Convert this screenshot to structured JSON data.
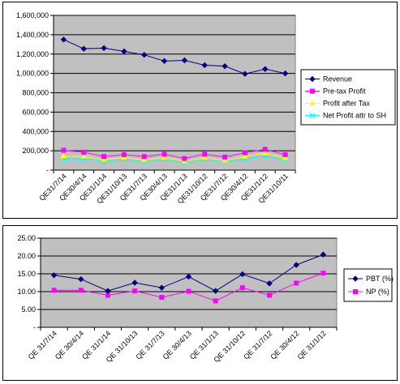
{
  "chart_data": [
    {
      "type": "line",
      "categories": [
        "QE31/7/14",
        "QE30/4/14",
        "QE31/1/14",
        "QE31/10/13",
        "QE31/7/13",
        "QE30/4/13",
        "QE31/1/13",
        "QE31/10/12",
        "QE31/7/12",
        "QE30/4/12",
        "QE31/1/12",
        "QE31/10/11"
      ],
      "ylim": [
        0,
        1600000
      ],
      "yticks": [
        "-",
        "200,000",
        "400,000",
        "600,000",
        "800,000",
        "1,000,000",
        "1,200,000",
        "1,400,000",
        "1,600,000"
      ],
      "grid": true,
      "legend": "right",
      "series": [
        {
          "name": "Revenue",
          "color": "#000080",
          "marker": "diamond",
          "values": [
            1350000,
            1255000,
            1262000,
            1228000,
            1192000,
            1128000,
            1135000,
            1085000,
            1075000,
            995000,
            1045000,
            1000000
          ]
        },
        {
          "name": "Pre-tax Profit",
          "color": "#ff00ff",
          "marker": "square",
          "values": [
            205000,
            185000,
            140000,
            160000,
            140000,
            165000,
            120000,
            165000,
            135000,
            180000,
            215000,
            160000
          ]
        },
        {
          "name": "Profit after Tax",
          "color": "#ffff00",
          "marker": "triangle",
          "values": [
            145000,
            140000,
            110000,
            130000,
            105000,
            130000,
            90000,
            130000,
            100000,
            140000,
            175000,
            125000
          ]
        },
        {
          "name": "Net Profit attr to SH",
          "color": "#00ffff",
          "marker": "x",
          "values": [
            115000,
            115000,
            90000,
            110000,
            85000,
            110000,
            75000,
            110000,
            85000,
            115000,
            145000,
            105000
          ]
        }
      ]
    },
    {
      "type": "line",
      "categories": [
        "QE 31/7/14",
        "QE 30/4/14",
        "QE 31/1/14",
        "QE 31/10/13",
        "QE 31/7/13",
        "QE 30/4/13",
        "QE 31/1/13",
        "QE 31/10/12",
        "QE 31/7/12",
        "QE 30/4/12",
        "QE 31/1/12"
      ],
      "ylim": [
        0,
        25
      ],
      "yticks": [
        "-",
        "5.00",
        "10.00",
        "15.00",
        "20.00",
        "25.00"
      ],
      "grid": true,
      "legend": "right",
      "series": [
        {
          "name": "PBT (%)",
          "color": "#000080",
          "marker": "diamond",
          "values": [
            14.6,
            13.5,
            10.2,
            12.5,
            11.1,
            14.2,
            10.2,
            14.9,
            12.3,
            17.5,
            20.4
          ]
        },
        {
          "name": "NP (%)",
          "color": "#ff00ff",
          "marker": "square",
          "values": [
            10.4,
            10.4,
            9.0,
            10.2,
            8.4,
            10.1,
            7.4,
            11.1,
            9.0,
            12.4,
            15.2
          ]
        }
      ]
    }
  ]
}
